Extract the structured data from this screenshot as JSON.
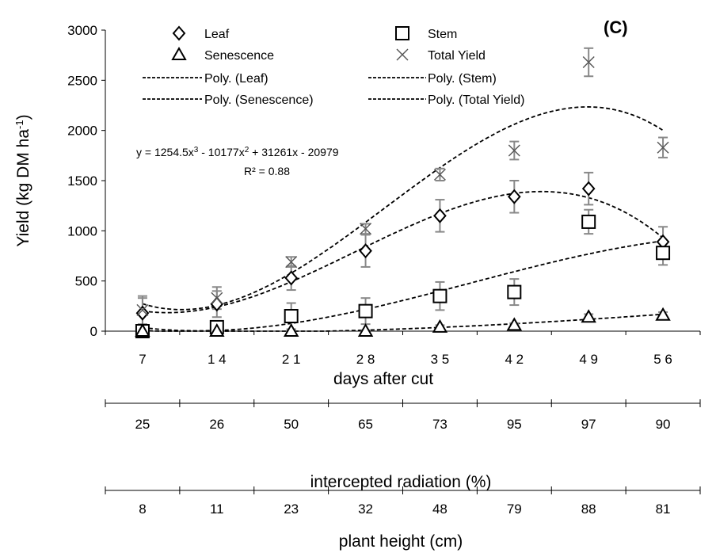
{
  "chart_data": {
    "type": "scatter",
    "panel_label": "(C)",
    "xlabel": "days after cut",
    "ylabel": "Yield (kg DM ha-1)",
    "ylabel_parts": {
      "main": "Yield (kg DM ha",
      "sup": "-1",
      "close": ")"
    },
    "ylim": [
      0,
      3000
    ],
    "yticks": [
      "0",
      "500",
      "1000",
      "1500",
      "2000",
      "2500",
      "3000"
    ],
    "ytick_values": [
      0,
      500,
      1000,
      1500,
      2000,
      2500,
      3000
    ],
    "x": [
      7,
      14,
      21,
      28,
      35,
      42,
      49,
      56
    ],
    "xtick_labels": [
      "7",
      "1 4",
      "2 1",
      "2 8",
      "3 5",
      "4 2",
      "4 9",
      "5 6"
    ],
    "grid": false,
    "legend_placement": "top",
    "series": [
      {
        "name": "Leaf",
        "marker": "diamond",
        "values": [
          180,
          270,
          530,
          800,
          1150,
          1340,
          1420,
          890
        ],
        "errors": [
          150,
          130,
          120,
          160,
          160,
          160,
          160,
          150
        ]
      },
      {
        "name": "Stem",
        "marker": "square",
        "values": [
          0,
          40,
          150,
          200,
          350,
          390,
          1090,
          780
        ],
        "errors": [
          20,
          40,
          130,
          130,
          140,
          130,
          120,
          120
        ]
      },
      {
        "name": "Senescence",
        "marker": "triangle",
        "values": [
          0,
          0,
          0,
          0,
          40,
          60,
          140,
          160
        ],
        "errors": [
          10,
          10,
          10,
          10,
          20,
          20,
          30,
          30
        ]
      },
      {
        "name": "Total Yield",
        "marker": "cross",
        "values": [
          210,
          330,
          690,
          1020,
          1560,
          1800,
          2680,
          1830
        ],
        "errors": [
          140,
          110,
          50,
          50,
          60,
          90,
          140,
          100
        ]
      }
    ],
    "trendlines": [
      {
        "name": "Poly. (Leaf)",
        "series": "Leaf"
      },
      {
        "name": "Poly. (Stem)",
        "series": "Stem"
      },
      {
        "name": "Poly. (Senescence)",
        "series": "Senescence"
      },
      {
        "name": "Poly. (Total Yield)",
        "series": "Total Yield"
      }
    ],
    "equation_parts": [
      "y = 1254.5x",
      "3",
      " - 10177x",
      "2",
      " + 31261x - 20979"
    ],
    "r_squared": "R² = 0.88",
    "secondary_axes": [
      {
        "label": "intercepted radiation (%)",
        "values": [
          "25",
          "26",
          "50",
          "65",
          "73",
          "95",
          "97",
          "90"
        ]
      },
      {
        "label": "plant height (cm)",
        "values": [
          "8",
          "11",
          "23",
          "32",
          "48",
          "79",
          "88",
          "81"
        ]
      }
    ]
  }
}
